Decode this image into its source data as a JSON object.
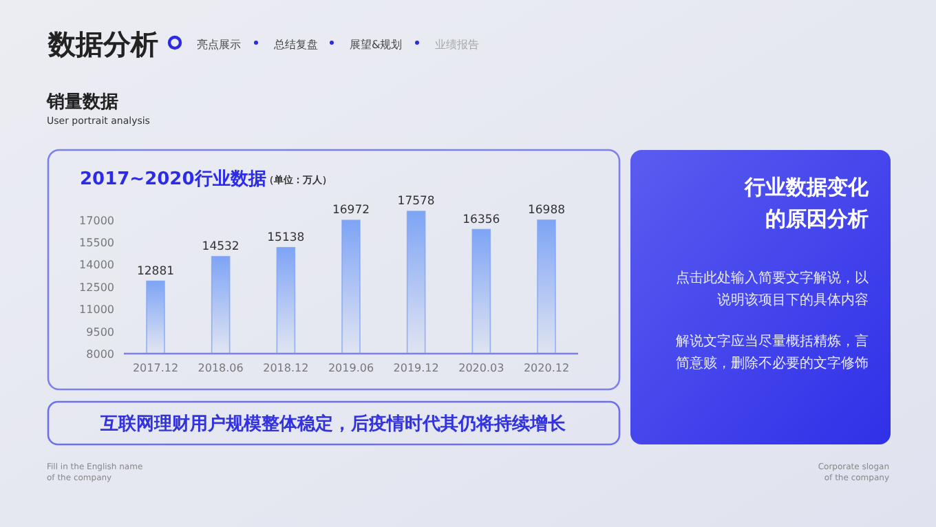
{
  "chart_data": {
    "type": "bar",
    "title": "2017~2020行业数据",
    "subtitle": "（单位：万人）",
    "categories": [
      "2017.12",
      "2018.06",
      "2018.12",
      "2019.06",
      "2019.12",
      "2020.03",
      "2020.12"
    ],
    "values": [
      12881,
      14532,
      15138,
      16972,
      17578,
      16356,
      16988
    ],
    "color": "#7ea4f5",
    "data_labels": true,
    "grid": false,
    "ylim": [
      8000,
      18000
    ],
    "yticks": [
      8000,
      9500,
      11000,
      12500,
      14000,
      15500,
      17000
    ],
    "annotations": [
      "数据分析",
      "亮点展示",
      "总结复盘",
      "展望&规划",
      "业绩报告",
      "销量数据",
      "User portrait analysis",
      "互联网理财用户规模整体稳定，后疫情时代其仍将持续增长",
      "行业数据变化的原因分析",
      "点击此处输入简要文字解说，以说明该项目下的具体内容",
      "解说文字应当尽量概括精炼，言简意赅，删除不必要的文字修饰",
      "Fill in the English name\nof the company",
      "Corporate slogan\nof the company"
    ]
  }
}
